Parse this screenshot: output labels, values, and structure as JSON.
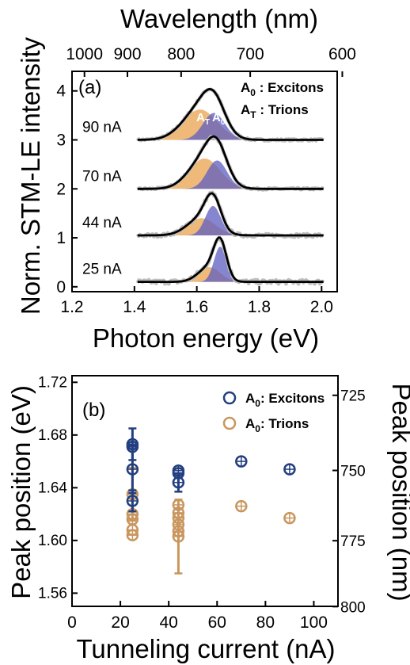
{
  "colors": {
    "exciton": "#233f80",
    "trion": "#c8965e",
    "raw": "#bdbdbd",
    "fit": "#000000",
    "fill_trion": "#eaa24e",
    "fill_exciton": "#5d5ec0"
  },
  "chart_data": [
    {
      "type": "line",
      "panel_label": "(a)",
      "xlabel": "Photon energy (eV)",
      "ylabel": "Norm. STM-LE intensity",
      "x2label": "Wavelength (nm)",
      "xlim": [
        1.2,
        2.05
      ],
      "ylim": [
        -0.1,
        4.4
      ],
      "xticks": [
        1.2,
        1.4,
        1.6,
        1.8,
        2.0
      ],
      "xtick_labels": [
        "1.2",
        "1.4",
        "1.6",
        "1.8",
        "2.0"
      ],
      "yticks": [
        0,
        1,
        2,
        3,
        4
      ],
      "ytick_labels": [
        "0",
        "1",
        "2",
        "3",
        "4"
      ],
      "x2ticks": [
        1000,
        900,
        800,
        700,
        600
      ],
      "x2tick_labels": [
        "1000",
        "900",
        "800",
        "700",
        "600"
      ],
      "legend": {
        "exciton": {
          "symbol": "A",
          "sub": "0",
          "text": " : Excitons"
        },
        "trion": {
          "symbol": "A",
          "sub": "T",
          "text": " : Trions"
        }
      },
      "peak_labels": {
        "trion": {
          "symbol": "A",
          "sub": "T"
        },
        "exciton": {
          "symbol": "A",
          "sub": "0"
        }
      },
      "series": [
        {
          "name": "90 nA",
          "offset": 3.0,
          "trion": {
            "center": 1.61,
            "amp": 0.62,
            "width": 0.055
          },
          "exciton": {
            "center": 1.655,
            "amp": 0.55,
            "width": 0.035
          }
        },
        {
          "name": "70 nA",
          "offset": 2.0,
          "trion": {
            "center": 1.625,
            "amp": 0.62,
            "width": 0.05
          },
          "exciton": {
            "center": 1.665,
            "amp": 0.58,
            "width": 0.032
          }
        },
        {
          "name": "44 nA",
          "offset": 1.05,
          "trion": {
            "center": 1.615,
            "amp": 0.35,
            "width": 0.045
          },
          "exciton": {
            "center": 1.652,
            "amp": 0.6,
            "width": 0.025
          }
        },
        {
          "name": "25 nA",
          "offset": 0.1,
          "trion": {
            "center": 1.64,
            "amp": 0.3,
            "width": 0.035
          },
          "exciton": {
            "center": 1.675,
            "amp": 0.72,
            "width": 0.02
          }
        }
      ]
    },
    {
      "type": "scatter",
      "panel_label": "(b)",
      "xlabel": "Tunneling current (nA)",
      "ylabel": "Peak position (eV)",
      "y2label": "Peak position (nm)",
      "xlim": [
        0,
        110
      ],
      "ylim": [
        1.55,
        1.725
      ],
      "xticks": [
        0,
        20,
        40,
        60,
        80,
        100
      ],
      "xtick_labels": [
        "0",
        "20",
        "40",
        "60",
        "80",
        "100"
      ],
      "yticks": [
        1.56,
        1.6,
        1.64,
        1.68,
        1.72
      ],
      "ytick_labels": [
        "1.56",
        "1.60",
        "1.64",
        "1.68",
        "1.72"
      ],
      "y2ticks": [
        725,
        750,
        775,
        800
      ],
      "y2tick_labels": [
        "725",
        "750",
        "775",
        "800"
      ],
      "legend": {
        "exciton": {
          "symbol": "A",
          "sub": "0",
          "text": ": Excitons"
        },
        "trion": {
          "symbol": "A",
          "sub": "0",
          "text": ": Trions"
        }
      },
      "series": [
        {
          "key": "exciton",
          "points": [
            {
              "x": 25,
              "y": 1.673,
              "err": 0.012
            },
            {
              "x": 25,
              "y": 1.671,
              "err": 0.0
            },
            {
              "x": 25,
              "y": 1.654,
              "err": 0.018
            },
            {
              "x": 25,
              "y": 1.63,
              "err": 0.008
            },
            {
              "x": 44,
              "y": 1.653,
              "err": 0.0
            },
            {
              "x": 44,
              "y": 1.651,
              "err": 0.0
            },
            {
              "x": 44,
              "y": 1.644,
              "err": 0.007
            },
            {
              "x": 70,
              "y": 1.66,
              "err": 0.0
            },
            {
              "x": 90,
              "y": 1.654,
              "err": 0.0
            }
          ]
        },
        {
          "key": "trion",
          "points": [
            {
              "x": 25,
              "y": 1.635,
              "err": 0.02
            },
            {
              "x": 25,
              "y": 1.62,
              "err": 0.0
            },
            {
              "x": 25,
              "y": 1.616,
              "err": 0.0
            },
            {
              "x": 25,
              "y": 1.608,
              "err": 0.0
            },
            {
              "x": 25,
              "y": 1.604,
              "err": 0.0
            },
            {
              "x": 44,
              "y": 1.627,
              "err": 0.0
            },
            {
              "x": 44,
              "y": 1.621,
              "err": 0.0
            },
            {
              "x": 44,
              "y": 1.617,
              "err": 0.0
            },
            {
              "x": 44,
              "y": 1.612,
              "err": 0.0
            },
            {
              "x": 44,
              "y": 1.607,
              "err": 0.0
            },
            {
              "x": 44,
              "y": 1.603,
              "err": 0.028
            },
            {
              "x": 70,
              "y": 1.626,
              "err": 0.0
            },
            {
              "x": 90,
              "y": 1.617,
              "err": 0.0
            }
          ]
        }
      ]
    }
  ]
}
